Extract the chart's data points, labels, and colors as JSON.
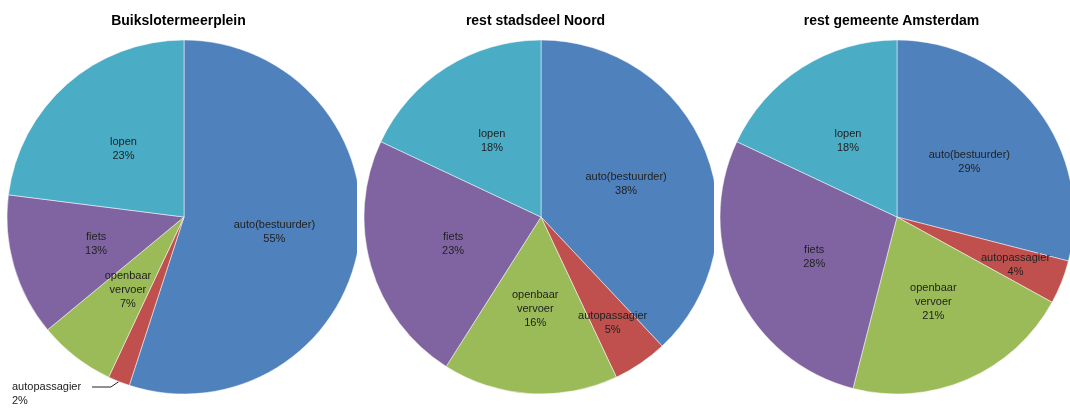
{
  "chart_data": [
    {
      "type": "pie",
      "title": "Buikslotermeerplein",
      "categories": [
        "auto(bestuurder)",
        "autopassagier",
        "openbaar vervoer",
        "fiets",
        "lopen"
      ],
      "values": [
        55,
        2,
        7,
        13,
        23
      ],
      "value_labels": [
        "55%",
        "2%",
        "7%",
        "13%",
        "23%"
      ],
      "colors": [
        "#4f81bd",
        "#c0504d",
        "#9bbb59",
        "#8064a2",
        "#4bacc6"
      ],
      "legend": false
    },
    {
      "type": "pie",
      "title": "rest stadsdeel Noord",
      "categories": [
        "auto(bestuurder)",
        "autopassagier",
        "openbaar vervoer",
        "fiets",
        "lopen"
      ],
      "values": [
        38,
        5,
        16,
        23,
        18
      ],
      "value_labels": [
        "38%",
        "5%",
        "16%",
        "23%",
        "18%"
      ],
      "colors": [
        "#4f81bd",
        "#c0504d",
        "#9bbb59",
        "#8064a2",
        "#4bacc6"
      ],
      "legend": false
    },
    {
      "type": "pie",
      "title": "rest gemeente Amsterdam",
      "categories": [
        "auto(bestuurder)",
        "autopassagier",
        "openbaar vervoer",
        "fiets",
        "lopen"
      ],
      "values": [
        29,
        4,
        21,
        28,
        18
      ],
      "value_labels": [
        "29%",
        "4%",
        "21%",
        "28%",
        "18%"
      ],
      "colors": [
        "#4f81bd",
        "#c0504d",
        "#9bbb59",
        "#8064a2",
        "#4bacc6"
      ],
      "legend": false
    }
  ]
}
